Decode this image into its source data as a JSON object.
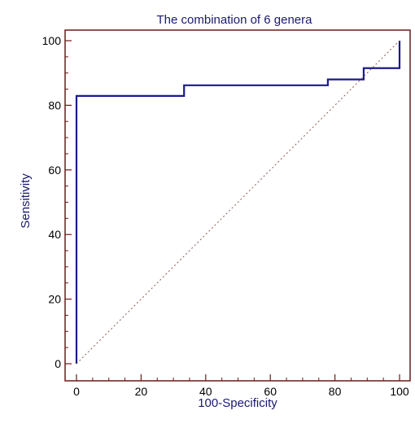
{
  "chart_data": {
    "type": "line",
    "title": "The combination of 6 genera",
    "xlabel": "100-Specificity",
    "ylabel": "Sensitivity",
    "xlim": [
      0,
      100
    ],
    "ylim": [
      0,
      100
    ],
    "x_ticks": [
      0,
      20,
      40,
      60,
      80,
      100
    ],
    "y_ticks": [
      0,
      20,
      40,
      60,
      80,
      100
    ],
    "grid": false,
    "frame_color": "#6b1a1a",
    "series": [
      {
        "color": "#1a1a8c",
        "style": "solid-step",
        "points": [
          [
            0,
            0
          ],
          [
            0,
            82.9
          ],
          [
            33.3,
            82.9
          ],
          [
            33.3,
            86.2
          ],
          [
            77.8,
            86.2
          ],
          [
            77.8,
            88.0
          ],
          [
            88.9,
            88.0
          ],
          [
            88.9,
            91.5
          ],
          [
            100,
            91.5
          ],
          [
            100,
            100
          ]
        ]
      },
      {
        "color": "#8b5a5a",
        "style": "dotted-diagonal",
        "points": [
          [
            0,
            0
          ],
          [
            100,
            100
          ]
        ]
      }
    ]
  }
}
